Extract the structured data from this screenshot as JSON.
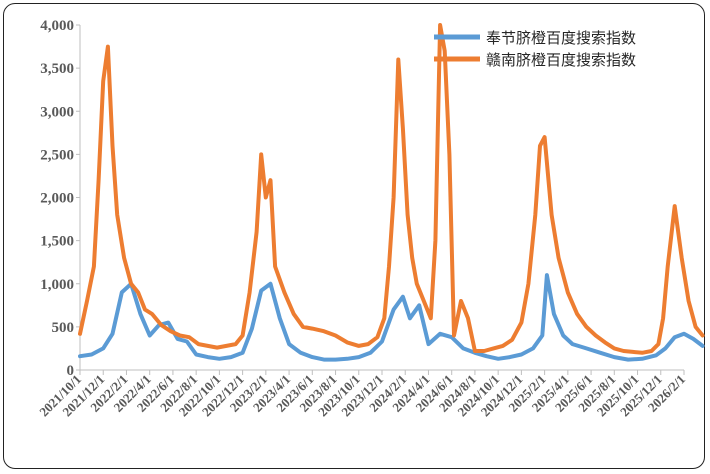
{
  "chart_data": {
    "type": "line",
    "title": "",
    "xlabel": "",
    "ylabel": "",
    "ylim": [
      0,
      4000
    ],
    "yticks": [
      "0",
      "500",
      "1,000",
      "1,500",
      "2,000",
      "2,500",
      "3,000",
      "3,500",
      "4,000"
    ],
    "xticks": [
      "2021/10/1",
      "2021/12/1",
      "2022/2/1",
      "2022/4/1",
      "2022/6/1",
      "2022/8/1",
      "2022/10/1",
      "2022/12/1",
      "2023/2/1",
      "2023/4/1",
      "2023/6/1",
      "2023/8/1",
      "2023/10/1",
      "2023/12/1",
      "2024/2/1",
      "2024/4/1",
      "2024/6/1",
      "2024/8/1",
      "2024/10/1",
      "2024/12/1",
      "2025/2/1",
      "2025/4/1",
      "2025/6/1",
      "2025/8/1",
      "2025/10/1",
      "2025/12/1",
      "2026/2/1"
    ],
    "legend_position": "top-right",
    "series": [
      {
        "name": "奉节脐橙百度搜索指数",
        "color": "#5B9BD5",
        "x": [
          0,
          0.5,
          1,
          1.4,
          1.8,
          2.2,
          2.6,
          3.0,
          3.4,
          3.8,
          4.2,
          4.6,
          5.0,
          5.5,
          6.0,
          6.5,
          7.0,
          7.4,
          7.8,
          8.2,
          8.6,
          9.0,
          9.5,
          10.0,
          10.5,
          11.0,
          11.5,
          12.0,
          12.5,
          13.0,
          13.5,
          13.9,
          14.2,
          14.6,
          15.0,
          15.5,
          16.0,
          16.5,
          17.0,
          17.5,
          18.0,
          18.5,
          19.0,
          19.5,
          19.9,
          20.1,
          20.4,
          20.8,
          21.2,
          21.8,
          22.4,
          23.0,
          23.6,
          24.2,
          24.8,
          25.2,
          25.6,
          26.0,
          26.4,
          26.8
        ],
        "values": [
          160,
          180,
          250,
          420,
          900,
          1000,
          650,
          400,
          520,
          550,
          360,
          330,
          180,
          150,
          130,
          150,
          200,
          480,
          920,
          1000,
          600,
          300,
          200,
          150,
          120,
          120,
          130,
          150,
          200,
          330,
          700,
          850,
          600,
          750,
          300,
          420,
          380,
          250,
          200,
          160,
          130,
          150,
          180,
          250,
          400,
          1100,
          650,
          400,
          300,
          250,
          200,
          150,
          120,
          130,
          170,
          250,
          380,
          420,
          360,
          280
        ]
      },
      {
        "name": "赣南脐橙百度搜索指数",
        "color": "#ED7D31",
        "x": [
          0,
          0.3,
          0.6,
          0.8,
          1.0,
          1.2,
          1.4,
          1.6,
          1.9,
          2.2,
          2.5,
          2.8,
          3.1,
          3.5,
          3.9,
          4.3,
          4.7,
          5.1,
          5.5,
          5.9,
          6.3,
          6.7,
          7.0,
          7.3,
          7.6,
          7.8,
          8.0,
          8.2,
          8.4,
          8.8,
          9.2,
          9.6,
          10.0,
          10.5,
          11.0,
          11.5,
          12.0,
          12.4,
          12.8,
          13.1,
          13.3,
          13.5,
          13.7,
          13.9,
          14.1,
          14.3,
          14.5,
          14.8,
          15.1,
          15.3,
          15.5,
          15.7,
          15.9,
          16.1,
          16.4,
          16.7,
          17.0,
          17.4,
          17.8,
          18.2,
          18.6,
          19.0,
          19.3,
          19.6,
          19.8,
          20.0,
          20.3,
          20.6,
          21.0,
          21.4,
          21.8,
          22.2,
          22.6,
          23.0,
          23.4,
          23.8,
          24.2,
          24.6,
          24.9,
          25.1,
          25.3,
          25.6,
          25.9,
          26.2,
          26.5,
          26.8
        ],
        "values": [
          420,
          800,
          1200,
          2200,
          3350,
          3750,
          2600,
          1800,
          1300,
          1000,
          900,
          700,
          650,
          520,
          450,
          400,
          380,
          300,
          280,
          260,
          280,
          300,
          400,
          900,
          1600,
          2500,
          2000,
          2200,
          1200,
          900,
          650,
          500,
          480,
          450,
          400,
          320,
          280,
          300,
          380,
          600,
          1200,
          2000,
          3600,
          2800,
          1800,
          1300,
          1000,
          800,
          600,
          1500,
          4000,
          3700,
          2500,
          400,
          800,
          600,
          220,
          220,
          250,
          280,
          350,
          550,
          1000,
          1800,
          2600,
          2700,
          1800,
          1300,
          900,
          650,
          500,
          400,
          320,
          250,
          220,
          210,
          200,
          220,
          300,
          600,
          1200,
          1900,
          1300,
          800,
          500,
          400
        ]
      }
    ]
  }
}
